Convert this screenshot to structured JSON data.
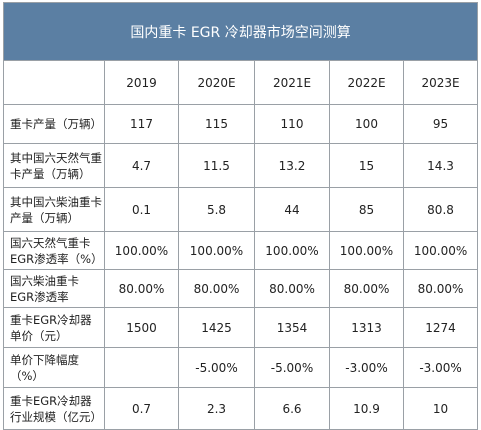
{
  "title": "国内重卡 EGR 冷却器市场空间测算",
  "years": [
    "2019",
    "2020E",
    "2021E",
    "2022E",
    "2023E"
  ],
  "rows": [
    {
      "label": "重卡产量（万辆）",
      "values": [
        "117",
        "115",
        "110",
        "100",
        "95"
      ]
    },
    {
      "label": "其中国六天然气重卡产量（万辆）",
      "values": [
        "4.7",
        "11.5",
        "13.2",
        "15",
        "14.3"
      ]
    },
    {
      "label": "其中国六柴油重卡产量（万辆）",
      "values": [
        "0.1",
        "5.8",
        "44",
        "85",
        "80.8"
      ]
    },
    {
      "label": "国六天然气重卡EGR渗透率（%）",
      "values": [
        "100.00%",
        "100.00%",
        "100.00%",
        "100.00%",
        "100.00%"
      ]
    },
    {
      "label": "国六柴油重卡EGR渗透率",
      "values": [
        "80.00%",
        "80.00%",
        "80.00%",
        "80.00%",
        "80.00%"
      ]
    },
    {
      "label": "重卡EGR冷却器单价（元）",
      "values": [
        "1500",
        "1425",
        "1354",
        "1313",
        "1274"
      ]
    },
    {
      "label": "单价下降幅度（%）",
      "values": [
        "",
        "-5.00%",
        "-5.00%",
        "-3.00%",
        "-3.00%"
      ]
    },
    {
      "label": "重卡EGR冷却器行业规模（亿元）",
      "values": [
        "0.7",
        "2.3",
        "6.6",
        "10.9",
        "10"
      ]
    }
  ]
}
